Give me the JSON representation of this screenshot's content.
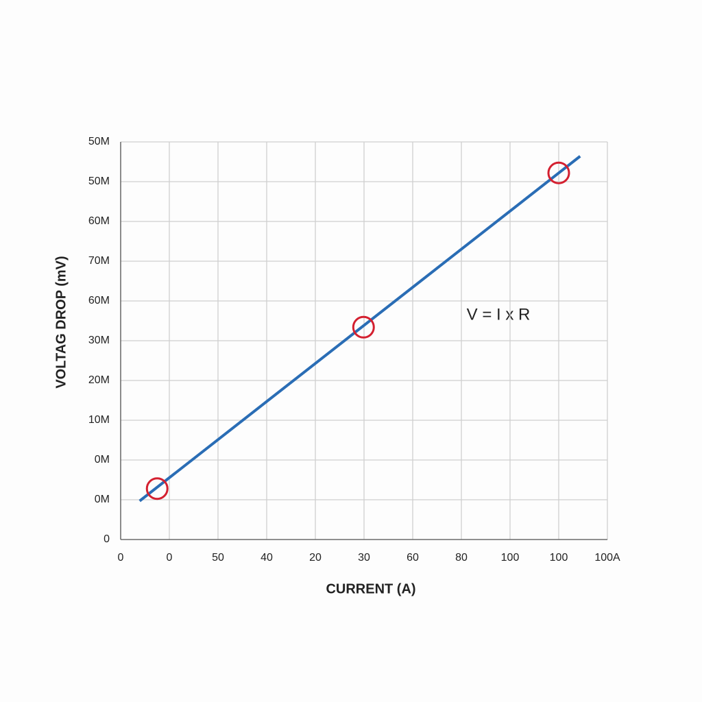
{
  "chart_data": {
    "type": "line",
    "x_label": "CURRENT (A)",
    "y_label": "VOLTAG DROP (mV)",
    "annotation": "V = I x R",
    "xlim": [
      0,
      10
    ],
    "ylim": [
      0,
      10
    ],
    "xticks": [
      0,
      {
        "value": 1,
        "label": "0"
      },
      {
        "value": 2,
        "label": "50"
      },
      {
        "value": 3,
        "label": "40"
      },
      {
        "value": 4,
        "label": "20"
      },
      {
        "value": 5,
        "label": "30"
      },
      {
        "value": 6,
        "label": "60"
      },
      {
        "value": 7,
        "label": "80"
      },
      {
        "value": 8,
        "label": "100"
      },
      {
        "value": 9,
        "label": "100"
      },
      {
        "value": 10,
        "label": "100A"
      }
    ],
    "yticks": [
      0,
      {
        "value": 1,
        "label": "0M"
      },
      {
        "value": 2,
        "label": "0M"
      },
      {
        "value": 3,
        "label": "10M"
      },
      {
        "value": 4,
        "label": "20M"
      },
      {
        "value": 5,
        "label": "30M"
      },
      {
        "value": 6,
        "label": "60M"
      },
      {
        "value": 7,
        "label": "70M"
      },
      {
        "value": 8,
        "label": "60M"
      },
      {
        "value": 9,
        "label": "50M"
      },
      {
        "value": 10,
        "label": "50M"
      }
    ],
    "grid": true,
    "x": [
      0.39,
      9.44
    ],
    "values": [
      0.97,
      9.64
    ],
    "color": "#2a6db5",
    "markers": {
      "x": [
        0.75,
        4.99,
        9.0
      ],
      "values": [
        1.28,
        5.34,
        9.22
      ],
      "color": "#d42030"
    }
  }
}
